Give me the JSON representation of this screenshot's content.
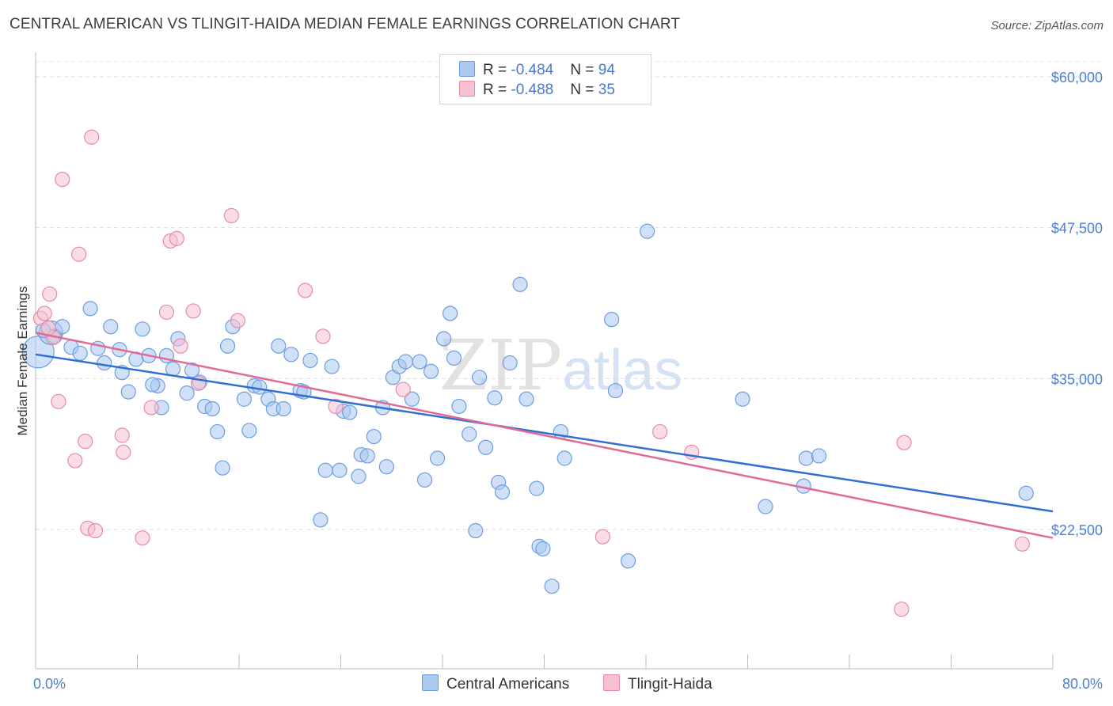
{
  "title": "CENTRAL AMERICAN VS TLINGIT-HAIDA MEDIAN FEMALE EARNINGS CORRELATION CHART",
  "source": "Source: ZipAtlas.com",
  "watermark": {
    "zip": "ZIP",
    "atlas": "atlas"
  },
  "legend": {
    "rows": [
      {
        "r_label": "R = ",
        "r_value": "-0.484",
        "n_label": "N = ",
        "n_value": "94",
        "color": "#a9c9f0",
        "border": "#6d9de0"
      },
      {
        "r_label": "R = ",
        "r_value": "-0.488",
        "n_label": "N = ",
        "n_value": "35",
        "color": "#f7c1d2",
        "border": "#e68aa8"
      }
    ]
  },
  "bottom_legend": [
    {
      "label": "Central Americans",
      "color": "#a9c9f0",
      "border": "#6d9de0"
    },
    {
      "label": "Tlingit-Haida",
      "color": "#f7c1d2",
      "border": "#e68aa8"
    }
  ],
  "chart_data": {
    "type": "scatter",
    "title": "CENTRAL AMERICAN VS TLINGIT-HAIDA MEDIAN FEMALE EARNINGS CORRELATION CHART",
    "xlabel": "",
    "ylabel": "Median Female Earnings",
    "xlim": [
      0,
      80
    ],
    "ylim": [
      12000,
      62000
    ],
    "x_tick_labels": [
      "0.0%",
      "80.0%"
    ],
    "y_ticks": [
      22500,
      35000,
      47500,
      60000
    ],
    "y_tick_labels": [
      "$22,500",
      "$35,000",
      "$47,500",
      "$60,000"
    ],
    "grid": "horizontal dashed",
    "legend_position": "top-center",
    "series": [
      {
        "name": "Central Americans",
        "color": "#6d9de0",
        "fill": "#a9c9f0",
        "trend": {
          "x": [
            0,
            80
          ],
          "y": [
            37000,
            24000
          ],
          "color": "#2f6fd1"
        },
        "points": [
          [
            0.2,
            37200
          ],
          [
            1.2,
            38800
          ],
          [
            1.5,
            38500
          ],
          [
            2.1,
            39300
          ],
          [
            2.8,
            37600
          ],
          [
            3.5,
            37100
          ],
          [
            4.3,
            40800
          ],
          [
            4.9,
            37500
          ],
          [
            5.4,
            36300
          ],
          [
            5.9,
            39300
          ],
          [
            6.6,
            37400
          ],
          [
            6.8,
            35500
          ],
          [
            7.3,
            33900
          ],
          [
            7.9,
            36600
          ],
          [
            8.4,
            39100
          ],
          [
            8.9,
            36900
          ],
          [
            9.6,
            34400
          ],
          [
            9.9,
            32600
          ],
          [
            10.3,
            36900
          ],
          [
            10.8,
            35800
          ],
          [
            11.2,
            38300
          ],
          [
            11.9,
            33800
          ],
          [
            12.3,
            35700
          ],
          [
            12.9,
            34700
          ],
          [
            13.3,
            32700
          ],
          [
            13.9,
            32500
          ],
          [
            14.3,
            30600
          ],
          [
            14.7,
            27600
          ],
          [
            15.1,
            37700
          ],
          [
            15.5,
            39300
          ],
          [
            16.4,
            33300
          ],
          [
            16.8,
            30700
          ],
          [
            17.2,
            34400
          ],
          [
            17.6,
            34300
          ],
          [
            18.3,
            33300
          ],
          [
            18.7,
            32500
          ],
          [
            19.1,
            37700
          ],
          [
            19.5,
            32500
          ],
          [
            20.1,
            37000
          ],
          [
            20.8,
            34000
          ],
          [
            21.1,
            33900
          ],
          [
            21.6,
            36500
          ],
          [
            22.4,
            23300
          ],
          [
            22.8,
            27400
          ],
          [
            23.3,
            36000
          ],
          [
            23.9,
            27400
          ],
          [
            24.2,
            32300
          ],
          [
            24.7,
            32200
          ],
          [
            25.4,
            26900
          ],
          [
            25.6,
            28700
          ],
          [
            26.1,
            28600
          ],
          [
            26.6,
            30200
          ],
          [
            27.3,
            32600
          ],
          [
            27.6,
            27700
          ],
          [
            28.1,
            35100
          ],
          [
            28.6,
            36000
          ],
          [
            29.1,
            36400
          ],
          [
            29.6,
            33300
          ],
          [
            30.2,
            36400
          ],
          [
            30.6,
            26600
          ],
          [
            31.1,
            35600
          ],
          [
            31.6,
            28400
          ],
          [
            32.1,
            38300
          ],
          [
            32.6,
            40400
          ],
          [
            32.9,
            36700
          ],
          [
            33.3,
            32700
          ],
          [
            34.1,
            30400
          ],
          [
            34.6,
            22400
          ],
          [
            34.9,
            35100
          ],
          [
            35.4,
            29300
          ],
          [
            36.1,
            33400
          ],
          [
            36.4,
            26400
          ],
          [
            36.7,
            25600
          ],
          [
            37.3,
            36300
          ],
          [
            38.1,
            42800
          ],
          [
            38.6,
            33300
          ],
          [
            39.4,
            25900
          ],
          [
            39.6,
            21100
          ],
          [
            39.9,
            20900
          ],
          [
            40.6,
            17800
          ],
          [
            41.3,
            30600
          ],
          [
            41.6,
            28400
          ],
          [
            45.3,
            39900
          ],
          [
            45.6,
            34000
          ],
          [
            46.6,
            19900
          ],
          [
            48.1,
            47200
          ],
          [
            55.6,
            33300
          ],
          [
            57.4,
            24400
          ],
          [
            60.6,
            28400
          ],
          [
            60.4,
            26100
          ],
          [
            61.6,
            28600
          ],
          [
            77.9,
            25500
          ],
          [
            0.6,
            39000
          ],
          [
            9.2,
            34500
          ]
        ]
      },
      {
        "name": "Tlingit-Haida",
        "color": "#e68aa8",
        "fill": "#f7c1d2",
        "trend": {
          "x": [
            0,
            80
          ],
          "y": [
            38800,
            21800
          ],
          "color": "#e06b95"
        },
        "points": [
          [
            0.4,
            40000
          ],
          [
            0.7,
            40400
          ],
          [
            1.1,
            42000
          ],
          [
            1.4,
            38400
          ],
          [
            1.8,
            33100
          ],
          [
            2.1,
            51500
          ],
          [
            3.1,
            28200
          ],
          [
            3.4,
            45300
          ],
          [
            3.9,
            29800
          ],
          [
            4.1,
            22600
          ],
          [
            4.4,
            55000
          ],
          [
            4.7,
            22400
          ],
          [
            6.8,
            30300
          ],
          [
            6.9,
            28900
          ],
          [
            8.4,
            21800
          ],
          [
            9.1,
            32600
          ],
          [
            10.3,
            40500
          ],
          [
            10.6,
            46400
          ],
          [
            11.1,
            46600
          ],
          [
            11.4,
            37700
          ],
          [
            12.4,
            40600
          ],
          [
            12.8,
            34600
          ],
          [
            15.4,
            48500
          ],
          [
            15.9,
            39800
          ],
          [
            21.2,
            42300
          ],
          [
            22.6,
            38500
          ],
          [
            23.6,
            32700
          ],
          [
            28.9,
            34100
          ],
          [
            44.6,
            21900
          ],
          [
            49.1,
            30600
          ],
          [
            51.6,
            28900
          ],
          [
            68.3,
            29700
          ],
          [
            68.1,
            15900
          ],
          [
            77.6,
            21300
          ],
          [
            1.0,
            39200
          ]
        ]
      }
    ]
  }
}
